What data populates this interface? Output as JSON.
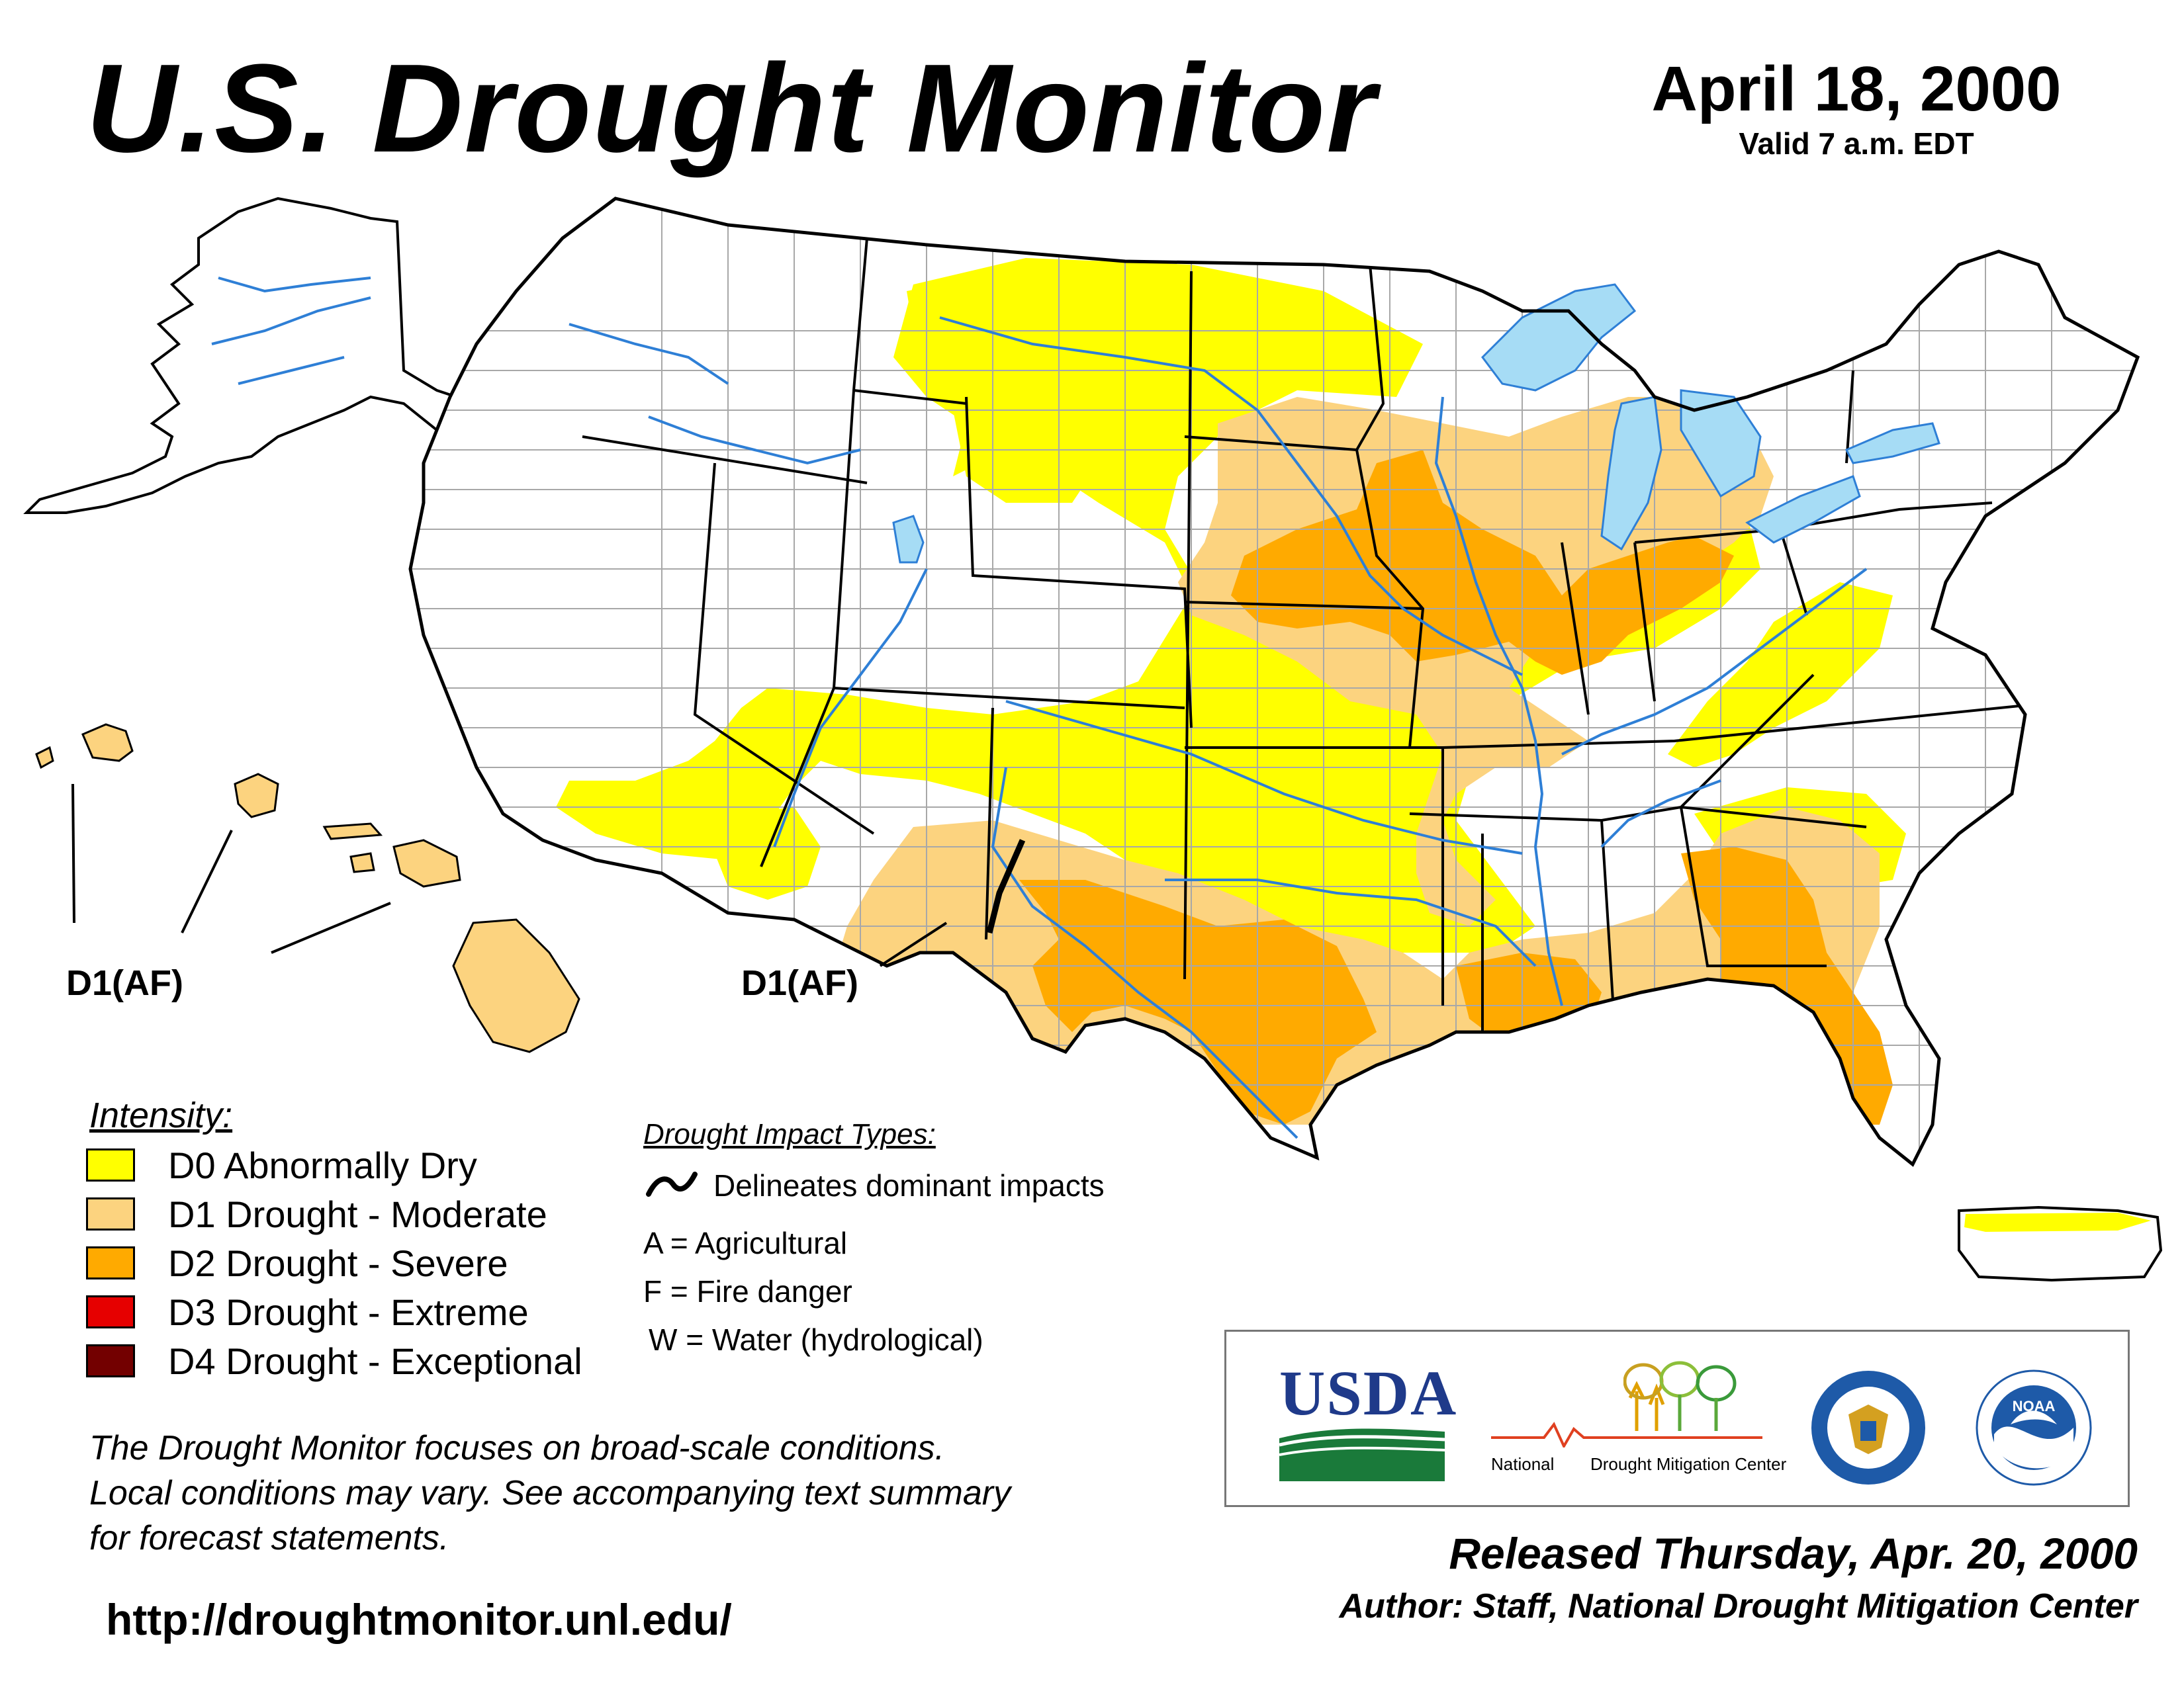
{
  "header": {
    "title": "U.S. Drought Monitor",
    "date": "April 18, 2000",
    "valid": "Valid 7 a.m. EDT"
  },
  "map": {
    "annotations": [
      {
        "id": "hawaii",
        "label": "D1(AF)"
      },
      {
        "id": "southwest",
        "label": "D1(AF)"
      }
    ],
    "colors": {
      "D0": "#ffff00",
      "D1": "#fcd37f",
      "D2": "#ffaa00",
      "D3": "#e60000",
      "D4": "#730000",
      "water": "#a6dcf5",
      "river": "#2e7fd6",
      "county": "#a8a8a8"
    }
  },
  "legend": {
    "title": "Intensity:",
    "items": [
      {
        "code": "D0",
        "label": "D0 Abnormally Dry",
        "color": "#ffff00"
      },
      {
        "code": "D1",
        "label": "D1 Drought - Moderate",
        "color": "#fcd37f"
      },
      {
        "code": "D2",
        "label": "D2 Drought - Severe",
        "color": "#ffaa00"
      },
      {
        "code": "D3",
        "label": "D3 Drought - Extreme",
        "color": "#e60000"
      },
      {
        "code": "D4",
        "label": "D4 Drought - Exceptional",
        "color": "#730000"
      }
    ]
  },
  "impacts": {
    "title": "Drought Impact Types:",
    "line_label": "Delineates dominant impacts",
    "items": [
      "A = Agricultural",
      "F = Fire danger",
      "W = Water (hydrological)"
    ]
  },
  "disclaimer": {
    "lines": [
      "The Drought Monitor focuses on broad-scale conditions.",
      "Local conditions may vary. See accompanying text summary",
      "for forecast statements."
    ]
  },
  "url": "http://droughtmonitor.unl.edu/",
  "logos": {
    "usda": "USDA",
    "ndmc_left": "National",
    "ndmc_right": "Drought Mitigation Center",
    "noaa": "NOAA",
    "commerce_icon": "department-of-commerce-seal-icon",
    "noaa_icon": "noaa-logo-icon"
  },
  "footer": {
    "released": "Released Thursday, Apr. 20, 2000",
    "author": "Author: Staff, National Drought Mitigation Center"
  }
}
